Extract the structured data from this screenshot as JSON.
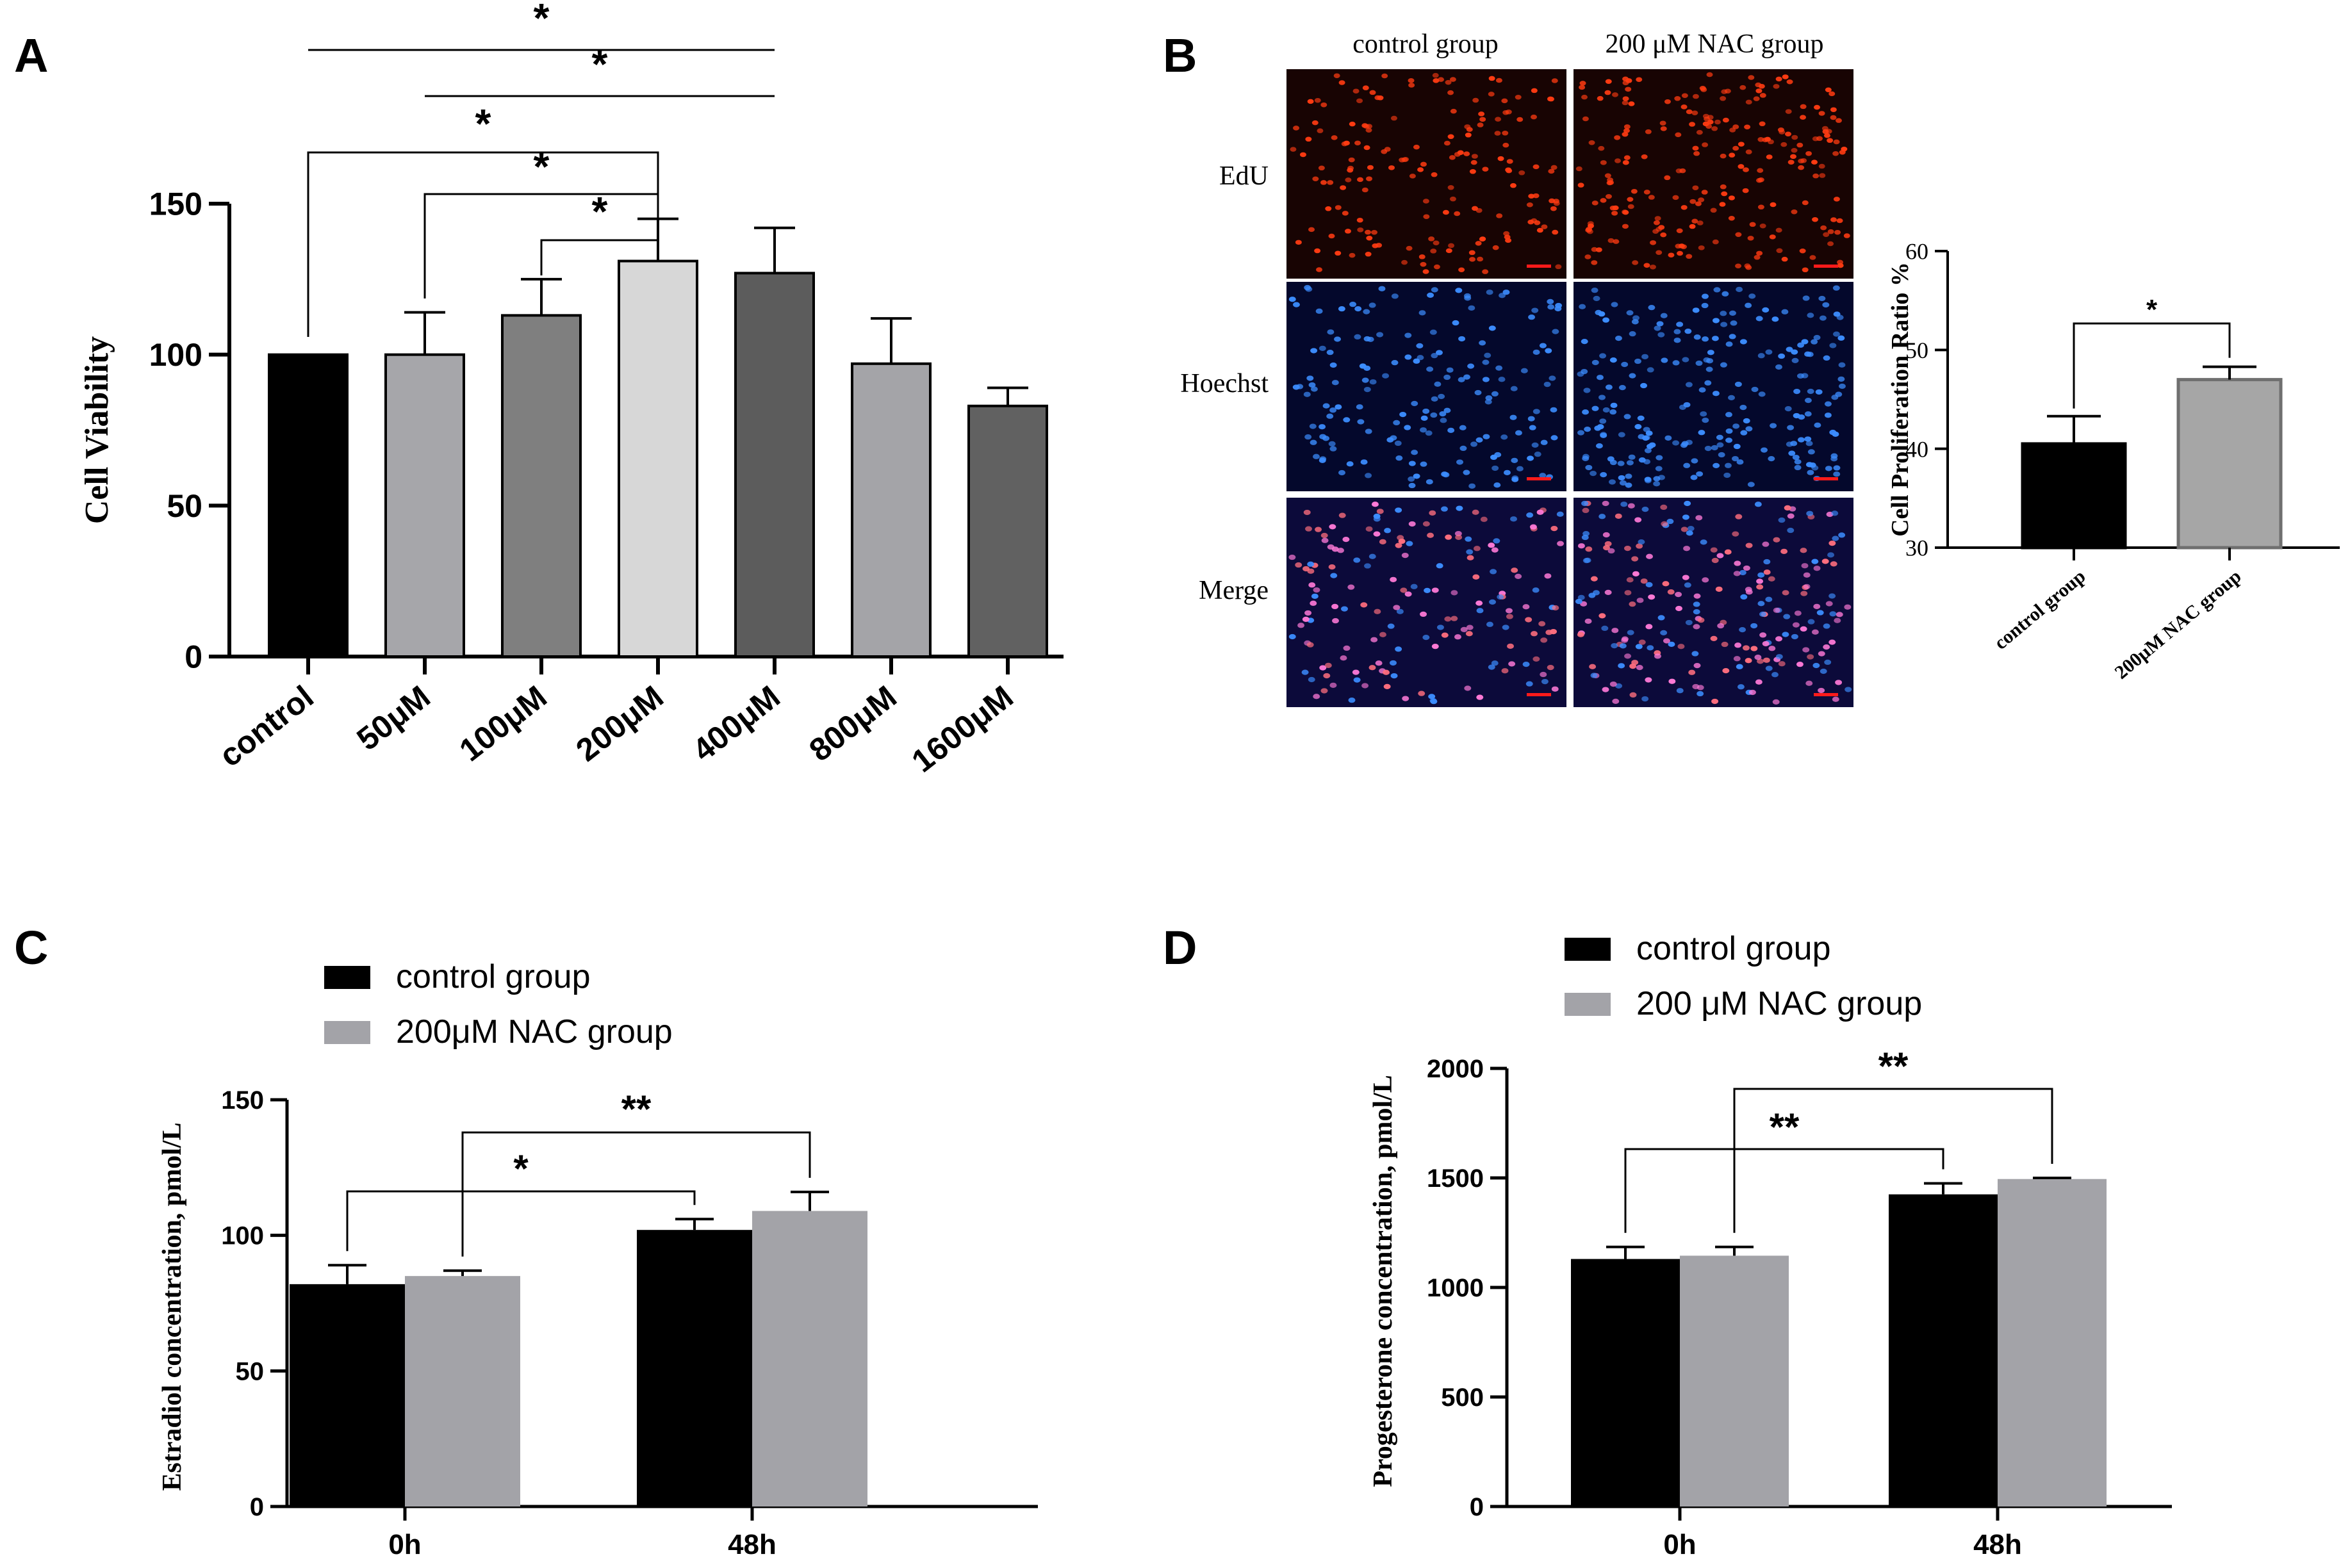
{
  "panels": {
    "a": {
      "letter": "A"
    },
    "b": {
      "letter": "B"
    },
    "c": {
      "letter": "C"
    },
    "d": {
      "letter": "D"
    }
  },
  "colors": {
    "black": "#000000",
    "control": "#000000",
    "nac": "#a3a3a8",
    "a_bars": [
      "#000000",
      "#a6a6aa",
      "#7f7f7f",
      "#d7d7d7",
      "#5c5c5c",
      "#a4a4a8",
      "#616161"
    ],
    "b_nac": "#a6a6a6",
    "b_nac_edge": "#6f6f6f",
    "edu_bg": "#180403",
    "edu_cell": "#ff3b12",
    "hoechst_bg": "#04082c",
    "hoechst_cell": "#3c8dff",
    "merge_bg": "#0c0a3a",
    "merge_cell_a": "#ff7ad8",
    "merge_cell_b": "#ff6e7e",
    "scale_bar": "#ff1a1a"
  },
  "micrograph": {
    "columns": [
      "control group",
      "200 μM NAC group"
    ],
    "rows": [
      "EdU",
      "Hoechst",
      "Merge"
    ]
  },
  "chart_data": [
    {
      "id": "A",
      "type": "bar",
      "title": "",
      "xlabel": "",
      "ylabel": "Cell Viability",
      "categories": [
        "control",
        "50μM",
        "100μM",
        "200μM",
        "400μM",
        "800μM",
        "1600μM"
      ],
      "values": [
        100,
        100,
        113,
        131,
        127,
        97,
        83
      ],
      "errors": [
        0,
        14,
        12,
        14,
        15,
        15,
        6
      ],
      "ylim": [
        0,
        150
      ],
      "yticks": [
        0,
        50,
        100,
        150
      ],
      "significance": [
        {
          "from": "control",
          "to": "400μM",
          "label": "*"
        },
        {
          "from": "50μM",
          "to": "400μM",
          "label": "*"
        },
        {
          "from": "control",
          "to": "200μM",
          "label": "*"
        },
        {
          "from": "50μM",
          "to": "200μM",
          "label": "*"
        },
        {
          "from": "100μM",
          "to": "200μM",
          "label": "*"
        }
      ]
    },
    {
      "id": "B",
      "type": "bar",
      "title": "",
      "xlabel": "",
      "ylabel": "Cell Proliferation Ratio %",
      "categories": [
        "control group",
        "200μM NAC group"
      ],
      "values": [
        40.5,
        47
      ],
      "errors": [
        2.8,
        1.3
      ],
      "ylim": [
        30,
        60
      ],
      "yticks": [
        30,
        40,
        50,
        60
      ],
      "significance": [
        {
          "from": "control group",
          "to": "200μM NAC group",
          "label": "*"
        }
      ]
    },
    {
      "id": "C",
      "type": "bar",
      "title": "",
      "xlabel": "",
      "ylabel": "Estradiol concentration, pmol/L",
      "categories": [
        "0h",
        "48h"
      ],
      "series": [
        {
          "name": "control group",
          "values": [
            82,
            102
          ],
          "errors": [
            7,
            4
          ]
        },
        {
          "name": "200μM NAC group",
          "values": [
            85,
            109
          ],
          "errors": [
            2,
            7
          ]
        }
      ],
      "ylim": [
        0,
        150
      ],
      "yticks": [
        0,
        50,
        100,
        150
      ],
      "legend": "top-left",
      "significance": [
        {
          "from": [
            "0h",
            "control group"
          ],
          "to": [
            "48h",
            "control group"
          ],
          "label": "*"
        },
        {
          "from": [
            "0h",
            "200μM NAC group"
          ],
          "to": [
            "48h",
            "200μM NAC group"
          ],
          "label": "**"
        }
      ]
    },
    {
      "id": "D",
      "type": "bar",
      "title": "",
      "xlabel": "",
      "ylabel": "Progesterone concentration, pmol/L",
      "categories": [
        "0h",
        "48h"
      ],
      "series": [
        {
          "name": "control group",
          "values": [
            1130,
            1425
          ],
          "errors": [
            55,
            50
          ]
        },
        {
          "name": "200 μM NAC group",
          "values": [
            1145,
            1495
          ],
          "errors": [
            40,
            5
          ]
        }
      ],
      "ylim": [
        0,
        2000
      ],
      "yticks": [
        0,
        500,
        1000,
        1500,
        2000
      ],
      "legend": "top-left",
      "significance": [
        {
          "from": [
            "0h",
            "control group"
          ],
          "to": [
            "48h",
            "control group"
          ],
          "label": "**"
        },
        {
          "from": [
            "0h",
            "200 μM NAC group"
          ],
          "to": [
            "48h",
            "200 μM NAC group"
          ],
          "label": "**"
        }
      ]
    }
  ]
}
